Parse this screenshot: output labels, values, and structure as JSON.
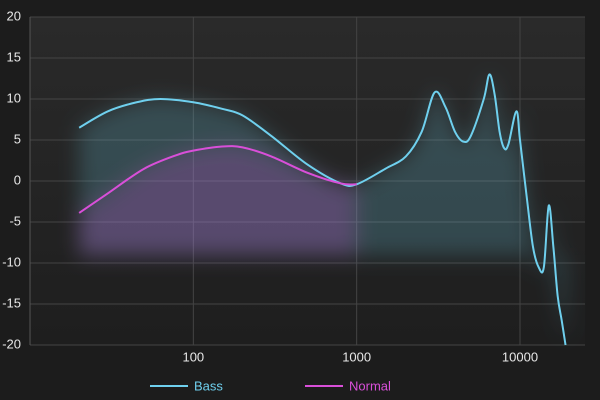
{
  "chart_data": {
    "type": "line",
    "series": [
      {
        "name": "Bass",
        "color": "#6fd0ee",
        "x": [
          20,
          30,
          45,
          63,
          100,
          150,
          200,
          300,
          500,
          800,
          1000,
          1500,
          2000,
          2500,
          3000,
          3500,
          4000,
          4500,
          5000,
          6000,
          6500,
          7000,
          7500,
          8000,
          8500,
          9500,
          10000,
          11000,
          12000,
          13000,
          14000,
          15000,
          16000,
          17000,
          18000,
          19000
        ],
        "values": [
          6.5,
          8.5,
          9.6,
          10,
          9.6,
          8.8,
          8,
          5.5,
          2,
          -0.3,
          -0.4,
          1.5,
          3,
          6,
          10.8,
          9,
          6,
          4.8,
          5.5,
          10,
          13,
          10.5,
          6,
          4,
          4.5,
          8.5,
          5,
          -2,
          -8,
          -10.5,
          -10.5,
          -3,
          -8,
          -14,
          -17,
          -20
        ]
      },
      {
        "name": "Normal",
        "color": "#d94fd9",
        "x": [
          20,
          30,
          50,
          80,
          100,
          150,
          200,
          300,
          500,
          800,
          1000
        ],
        "values": [
          -3.9,
          -1.5,
          1.5,
          3.2,
          3.7,
          4.2,
          4.1,
          3,
          1,
          -0.3,
          -0.4
        ]
      }
    ],
    "xlog": true,
    "xlim": [
      10,
      25000
    ],
    "xticks": [
      100,
      1000,
      10000
    ],
    "ylim": [
      -20,
      20
    ],
    "yticks": [
      -20,
      -15,
      -10,
      -5,
      0,
      5,
      10,
      15,
      20
    ],
    "grid": true,
    "legend": "bottom"
  }
}
